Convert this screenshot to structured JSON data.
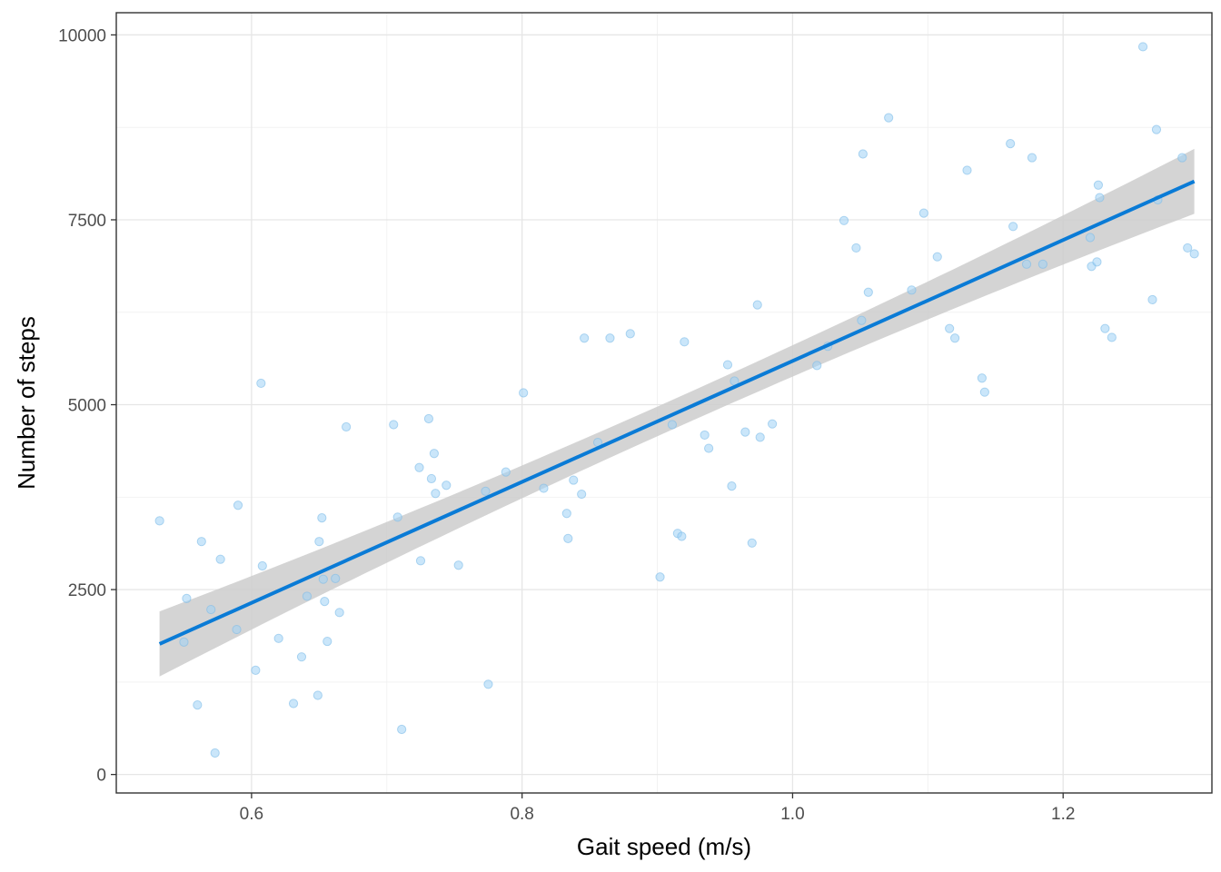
{
  "chart_data": {
    "type": "scatter",
    "title": "",
    "xlabel": "Gait speed (m/s)",
    "ylabel": "Number of steps",
    "xlim": [
      0.5,
      1.31
    ],
    "ylim": [
      -250,
      10300
    ],
    "x_ticks": [
      0.6,
      0.8,
      1.0,
      1.2
    ],
    "x_tick_labels": [
      "0.6",
      "0.8",
      "1.0",
      "1.2"
    ],
    "y_ticks": [
      0,
      2500,
      5000,
      7500,
      10000
    ],
    "y_tick_labels": [
      "0",
      "2500",
      "5000",
      "7500",
      "10000"
    ],
    "grid": true,
    "point_color": "#9fd1f5",
    "point_edge_color": "#7fbde8",
    "line_color": "#0a7bd6",
    "ribbon_color": "#cccccc",
    "points": [
      {
        "x": 0.532,
        "y": 3430
      },
      {
        "x": 0.55,
        "y": 1790
      },
      {
        "x": 0.552,
        "y": 2380
      },
      {
        "x": 0.56,
        "y": 940
      },
      {
        "x": 0.563,
        "y": 3150
      },
      {
        "x": 0.57,
        "y": 2230
      },
      {
        "x": 0.573,
        "y": 290
      },
      {
        "x": 0.577,
        "y": 2910
      },
      {
        "x": 0.589,
        "y": 1960
      },
      {
        "x": 0.59,
        "y": 3640
      },
      {
        "x": 0.603,
        "y": 1410
      },
      {
        "x": 0.607,
        "y": 5290
      },
      {
        "x": 0.608,
        "y": 2820
      },
      {
        "x": 0.62,
        "y": 1840
      },
      {
        "x": 0.631,
        "y": 960
      },
      {
        "x": 0.637,
        "y": 1590
      },
      {
        "x": 0.641,
        "y": 2410
      },
      {
        "x": 0.649,
        "y": 1070
      },
      {
        "x": 0.65,
        "y": 3150
      },
      {
        "x": 0.652,
        "y": 3470
      },
      {
        "x": 0.653,
        "y": 2640
      },
      {
        "x": 0.654,
        "y": 2340
      },
      {
        "x": 0.656,
        "y": 1800
      },
      {
        "x": 0.662,
        "y": 2650
      },
      {
        "x": 0.665,
        "y": 2190
      },
      {
        "x": 0.67,
        "y": 4700
      },
      {
        "x": 0.705,
        "y": 4730
      },
      {
        "x": 0.708,
        "y": 3480
      },
      {
        "x": 0.711,
        "y": 610
      },
      {
        "x": 0.724,
        "y": 4150
      },
      {
        "x": 0.725,
        "y": 2890
      },
      {
        "x": 0.731,
        "y": 4810
      },
      {
        "x": 0.733,
        "y": 4000
      },
      {
        "x": 0.735,
        "y": 4340
      },
      {
        "x": 0.736,
        "y": 3800
      },
      {
        "x": 0.744,
        "y": 3910
      },
      {
        "x": 0.753,
        "y": 2830
      },
      {
        "x": 0.773,
        "y": 3830
      },
      {
        "x": 0.775,
        "y": 1220
      },
      {
        "x": 0.788,
        "y": 4090
      },
      {
        "x": 0.801,
        "y": 5160
      },
      {
        "x": 0.816,
        "y": 3870
      },
      {
        "x": 0.833,
        "y": 3530
      },
      {
        "x": 0.834,
        "y": 3190
      },
      {
        "x": 0.838,
        "y": 3980
      },
      {
        "x": 0.844,
        "y": 3790
      },
      {
        "x": 0.846,
        "y": 5900
      },
      {
        "x": 0.856,
        "y": 4490
      },
      {
        "x": 0.865,
        "y": 5900
      },
      {
        "x": 0.88,
        "y": 5960
      },
      {
        "x": 0.902,
        "y": 2670
      },
      {
        "x": 0.911,
        "y": 4730
      },
      {
        "x": 0.915,
        "y": 3260
      },
      {
        "x": 0.918,
        "y": 3220
      },
      {
        "x": 0.92,
        "y": 5850
      },
      {
        "x": 0.935,
        "y": 4590
      },
      {
        "x": 0.938,
        "y": 4410
      },
      {
        "x": 0.952,
        "y": 5540
      },
      {
        "x": 0.955,
        "y": 3900
      },
      {
        "x": 0.957,
        "y": 5320
      },
      {
        "x": 0.965,
        "y": 4630
      },
      {
        "x": 0.97,
        "y": 3130
      },
      {
        "x": 0.974,
        "y": 6350
      },
      {
        "x": 0.976,
        "y": 4560
      },
      {
        "x": 0.985,
        "y": 4740
      },
      {
        "x": 1.018,
        "y": 5530
      },
      {
        "x": 1.026,
        "y": 5790
      },
      {
        "x": 1.038,
        "y": 7490
      },
      {
        "x": 1.047,
        "y": 7120
      },
      {
        "x": 1.051,
        "y": 6140
      },
      {
        "x": 1.052,
        "y": 8390
      },
      {
        "x": 1.056,
        "y": 6520
      },
      {
        "x": 1.071,
        "y": 8880
      },
      {
        "x": 1.088,
        "y": 6550
      },
      {
        "x": 1.097,
        "y": 7590
      },
      {
        "x": 1.107,
        "y": 7000
      },
      {
        "x": 1.116,
        "y": 6030
      },
      {
        "x": 1.12,
        "y": 5900
      },
      {
        "x": 1.129,
        "y": 8170
      },
      {
        "x": 1.14,
        "y": 5360
      },
      {
        "x": 1.142,
        "y": 5170
      },
      {
        "x": 1.161,
        "y": 8530
      },
      {
        "x": 1.163,
        "y": 7410
      },
      {
        "x": 1.173,
        "y": 6900
      },
      {
        "x": 1.177,
        "y": 8340
      },
      {
        "x": 1.185,
        "y": 6900
      },
      {
        "x": 1.22,
        "y": 7260
      },
      {
        "x": 1.221,
        "y": 6870
      },
      {
        "x": 1.225,
        "y": 6930
      },
      {
        "x": 1.226,
        "y": 7970
      },
      {
        "x": 1.227,
        "y": 7800
      },
      {
        "x": 1.231,
        "y": 6030
      },
      {
        "x": 1.236,
        "y": 5910
      },
      {
        "x": 1.259,
        "y": 9840
      },
      {
        "x": 1.266,
        "y": 6420
      },
      {
        "x": 1.269,
        "y": 8720
      },
      {
        "x": 1.27,
        "y": 7770
      },
      {
        "x": 1.288,
        "y": 8340
      },
      {
        "x": 1.292,
        "y": 7120
      },
      {
        "x": 1.297,
        "y": 7040
      }
    ],
    "fit": {
      "x0": 0.532,
      "x1": 1.297,
      "y0": 1765,
      "y1": 8020,
      "se_center_x": 0.915,
      "se_min": 200,
      "se_max": 440
    }
  }
}
